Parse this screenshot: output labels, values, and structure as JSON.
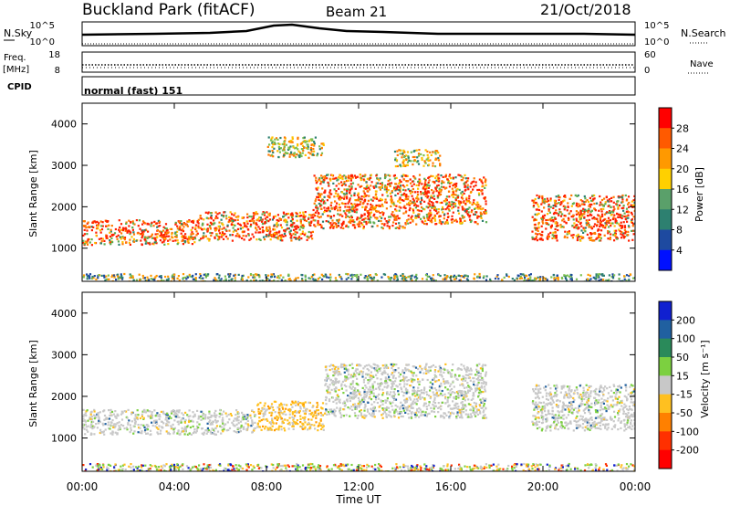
{
  "header": {
    "site": "Buckland Park (fitACF)",
    "beam": "Beam 21",
    "date": "21/Oct/2018"
  },
  "noise_panel": {
    "left_label": "N.Sky",
    "right_label": "N.Search",
    "left_ticks": [
      "10^5",
      "10^0"
    ],
    "right_ticks": [
      "10^5",
      "10^0"
    ]
  },
  "freq_panel": {
    "left_label_1": "Freq.",
    "left_label_2": "[MHz]",
    "left_ticks": [
      "18",
      "8"
    ],
    "right_label": "Nave",
    "right_ticks": [
      "60",
      "0"
    ]
  },
  "cpid_panel": {
    "label": "CPID",
    "mode": "normal (fast) 151"
  },
  "chart_data": [
    {
      "type": "heatmap",
      "name": "power",
      "ylabel": "Slant Range [km]",
      "y_ticks": [
        "1000",
        "2000",
        "3000",
        "4000"
      ],
      "ylim": [
        200,
        4500
      ],
      "xlim": [
        0,
        24
      ],
      "colorbar_label": "Power [dB]",
      "colorbar_ticks": [
        "28",
        "24",
        "20",
        "16",
        "12",
        "8",
        "4"
      ],
      "colorbar_colors": [
        "#ff0000",
        "#ff5a00",
        "#ff9900",
        "#ffd000",
        "#5aa06a",
        "#2d8070",
        "#1e4aa0",
        "#0010ff"
      ],
      "features": [
        {
          "t": [
            0.0,
            5.0
          ],
          "range": [
            1100,
            1700
          ],
          "level": "high"
        },
        {
          "t": [
            5.0,
            10.0
          ],
          "range": [
            1200,
            1900
          ],
          "level": "high"
        },
        {
          "t": [
            10.0,
            14.0
          ],
          "range": [
            1500,
            2800
          ],
          "level": "high"
        },
        {
          "t": [
            14.0,
            17.5
          ],
          "range": [
            1600,
            2800
          ],
          "level": "high"
        },
        {
          "t": [
            8.0,
            10.5
          ],
          "range": [
            3200,
            3700
          ],
          "level": "medium"
        },
        {
          "t": [
            13.5,
            15.5
          ],
          "range": [
            3000,
            3400
          ],
          "level": "medium"
        },
        {
          "t": [
            19.5,
            24.0
          ],
          "range": [
            1200,
            2300
          ],
          "level": "high"
        },
        {
          "t": [
            0.0,
            24.0
          ],
          "range": [
            200,
            400
          ],
          "level": "low"
        }
      ]
    },
    {
      "type": "heatmap",
      "name": "velocity",
      "ylabel": "Slant Range [km]",
      "y_ticks": [
        "1000",
        "2000",
        "3000",
        "4000"
      ],
      "ylim": [
        200,
        4500
      ],
      "xlim": [
        0,
        24
      ],
      "colorbar_label": "Velocity [m s⁻¹]",
      "colorbar_ticks": [
        "200",
        "100",
        "50",
        "15",
        "-15",
        "-50",
        "-100",
        "-200"
      ],
      "colorbar_colors": [
        "#1020d0",
        "#2060a0",
        "#2a8a5a",
        "#7cd040",
        "#c8c8c8",
        "#ffc020",
        "#ff8000",
        "#ff3000",
        "#ff0000"
      ],
      "features": [
        {
          "t": [
            0.0,
            7.5
          ],
          "range": [
            1100,
            1700
          ],
          "level": "low"
        },
        {
          "t": [
            7.5,
            10.5
          ],
          "range": [
            1200,
            1900
          ],
          "level": "negative"
        },
        {
          "t": [
            10.5,
            17.5
          ],
          "range": [
            1500,
            2800
          ],
          "level": "low"
        },
        {
          "t": [
            19.5,
            24.0
          ],
          "range": [
            1200,
            2300
          ],
          "level": "low"
        },
        {
          "t": [
            0.0,
            24.0
          ],
          "range": [
            200,
            400
          ],
          "level": "mixed"
        }
      ]
    }
  ],
  "x_axis": {
    "ticks": [
      "00:00",
      "04:00",
      "08:00",
      "12:00",
      "16:00",
      "20:00",
      "00:00"
    ],
    "label": "Time UT"
  },
  "colors": {
    "gray_scatter": "#c8c8c8",
    "green": "#7cd040",
    "orange": "#ff9900",
    "red": "#ff0000"
  }
}
